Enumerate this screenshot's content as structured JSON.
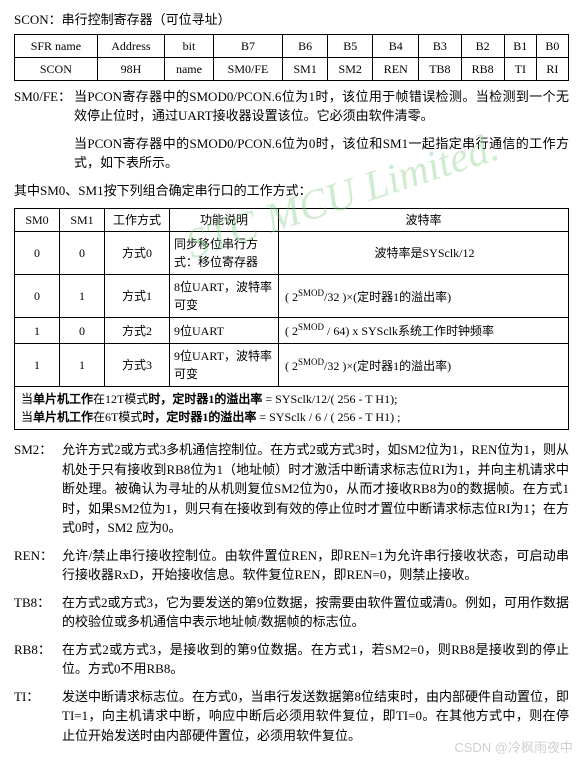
{
  "title": "SCON：串行控制寄存器（可位寻址）",
  "sfr_table": {
    "headers": [
      "SFR name",
      "Address",
      "bit",
      "B7",
      "B6",
      "B5",
      "B4",
      "B3",
      "B2",
      "B1",
      "B0"
    ],
    "row": [
      "SCON",
      "98H",
      "name",
      "SM0/FE",
      "SM1",
      "SM2",
      "REN",
      "TB8",
      "RB8",
      "TI",
      "RI"
    ]
  },
  "sm0fe_label": "SM0/FE：",
  "sm0fe_p1": "当PCON寄存器中的SMOD0/PCON.6位为1时，该位用于帧错误检测。当检测到一个无效停止位时，通过UART接收器设置该位。它必须由软件清零。",
  "sm0fe_p2": "当PCON寄存器中的SMOD0/PCON.6位为0时，该位和SM1一起指定串行通信的工作方式，如下表所示。",
  "modes_intro": "其中SM0、SM1按下列组合确定串行口的工作方式：",
  "modes_table": {
    "headers": [
      "SM0",
      "SM1",
      "工作方式",
      "功能说明",
      "波特率"
    ],
    "rows": [
      {
        "sm0": "0",
        "sm1": "0",
        "mode": "方式0",
        "func": "同步移位串行方式：移位寄存器",
        "baud_plain": "波特率是SYSclk/12"
      },
      {
        "sm0": "0",
        "sm1": "1",
        "mode": "方式1",
        "func": "8位UART，波特率可变",
        "baud_html": "( 2<sup>SMOD</sup>/32 )×(定时器1的溢出率)"
      },
      {
        "sm0": "1",
        "sm1": "0",
        "mode": "方式2",
        "func": "9位UART",
        "baud_html": "( 2<sup>SMOD</sup> / 64) x SYSclk系统工作时钟频率"
      },
      {
        "sm0": "1",
        "sm1": "1",
        "mode": "方式3",
        "func": "9位UART，波特率可变",
        "baud_html": "( 2<sup>SMOD</sup>/32 )×(定时器1的溢出率)"
      }
    ]
  },
  "note1_a": "当",
  "note1_b": "单片机工作",
  "note1_c": "在12T模式",
  "note1_d": "时，",
  "note1_e": "定时器1的溢出率",
  "note1_f": " = SYSclk/12/( 256 - T H1);",
  "note2_a": "当",
  "note2_b": "单片机工作",
  "note2_c": "在6T模式",
  "note2_d": "时，",
  "note2_e": "定时器1的溢出率",
  "note2_f": " = SYSclk / 6 / ( 256 - T H1) ;",
  "sm2_label": "SM2：",
  "sm2_text": "允许方式2或方式3多机通信控制位。在方式2或方式3时，如SM2位为1，REN位为1，则从机处于只有接收到RB8位为1（地址帧）时才激活中断请求标志位RI为1，并向主机请求中断处理。被确认为寻址的从机则复位SM2位为0，从而才接收RB8为0的数据帧。在方式1时，如果SM2位为1，则只有在接收到有效的停止位时才置位中断请求标志位RI为1；在方式0时，SM2 应为0。",
  "ren_label": "REN：",
  "ren_text": "允许/禁止串行接收控制位。由软件置位REN，即REN=1为允许串行接收状态，可启动串行接收器RxD，开始接收信息。软件复位REN，即REN=0，则禁止接收。",
  "tb8_label": "TB8：",
  "tb8_text": "在方式2或方式3，它为要发送的第9位数据，按需要由软件置位或清0。例如，可用作数据的校验位或多机通信中表示地址帧/数据帧的标志位。",
  "rb8_label": "RB8：",
  "rb8_text": "在方式2或方式3，是接收到的第9位数据。在方式1，若SM2=0，则RB8是接收到的停止位。方式0不用RB8。",
  "ti_label": "TI：",
  "ti_text": "发送中断请求标志位。在方式0，当串行发送数据第8位结束时，由内部硬件自动置位，即TI=1，向主机请求中断，响应中断后必须用软件复位，即TI=0。在其他方式中，则在停止位开始发送时由内部硬件置位，必须用软件复位。",
  "watermark": "STC MCU Limited.",
  "csdn": "CSDN @冷枫雨夜中"
}
